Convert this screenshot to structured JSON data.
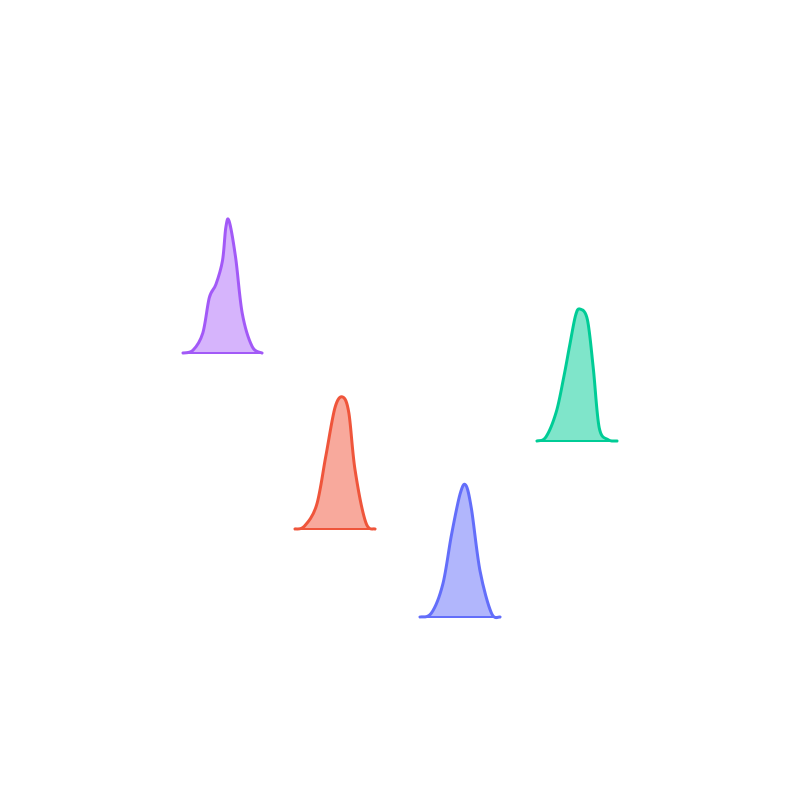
{
  "chart_data": {
    "type": "ridgeline",
    "title": "",
    "xlabel": "",
    "ylabel": "",
    "grid": false,
    "legend": "none",
    "xlim": [
      0,
      4
    ],
    "ylim": [
      0,
      4
    ],
    "series": [
      {
        "color": "#a259f7",
        "fill": "#d6b4fc",
        "x": [
          0.2,
          0.5,
          0.8,
          1.0,
          1.2,
          1.4,
          1.5,
          1.6,
          1.8,
          2.0,
          2.3,
          2.6
        ],
        "y": 2.8,
        "density": [
          0.0,
          0.02,
          0.15,
          0.42,
          0.52,
          0.7,
          0.95,
          1.0,
          0.72,
          0.3,
          0.05,
          0.0
        ]
      },
      {
        "color": "#ef553b",
        "fill": "#f8a99c",
        "x": [
          0.0,
          0.3,
          0.7,
          1.0,
          1.3,
          1.55,
          1.75,
          1.95,
          2.3,
          2.6
        ],
        "y": 1.8,
        "density": [
          0.0,
          0.02,
          0.18,
          0.55,
          0.92,
          1.0,
          0.88,
          0.45,
          0.05,
          0.0
        ]
      },
      {
        "color": "#636efa",
        "fill": "#b1b6fc",
        "x": [
          0.0,
          0.4,
          0.8,
          1.1,
          1.4,
          1.6,
          1.8,
          2.1,
          2.5,
          2.8
        ],
        "y": 0.8,
        "density": [
          0.0,
          0.03,
          0.25,
          0.62,
          0.93,
          1.0,
          0.82,
          0.35,
          0.03,
          0.0
        ]
      },
      {
        "color": "#00cc96",
        "fill": "#7fe5ca",
        "x": [
          0.0,
          0.3,
          0.65,
          0.9,
          1.1,
          1.3,
          1.45,
          1.7,
          1.9,
          2.1,
          2.4,
          2.7
        ],
        "y": 1.8,
        "density": [
          0.0,
          0.03,
          0.22,
          0.48,
          0.72,
          0.95,
          1.0,
          0.92,
          0.55,
          0.1,
          0.01,
          0.0
        ]
      }
    ]
  }
}
